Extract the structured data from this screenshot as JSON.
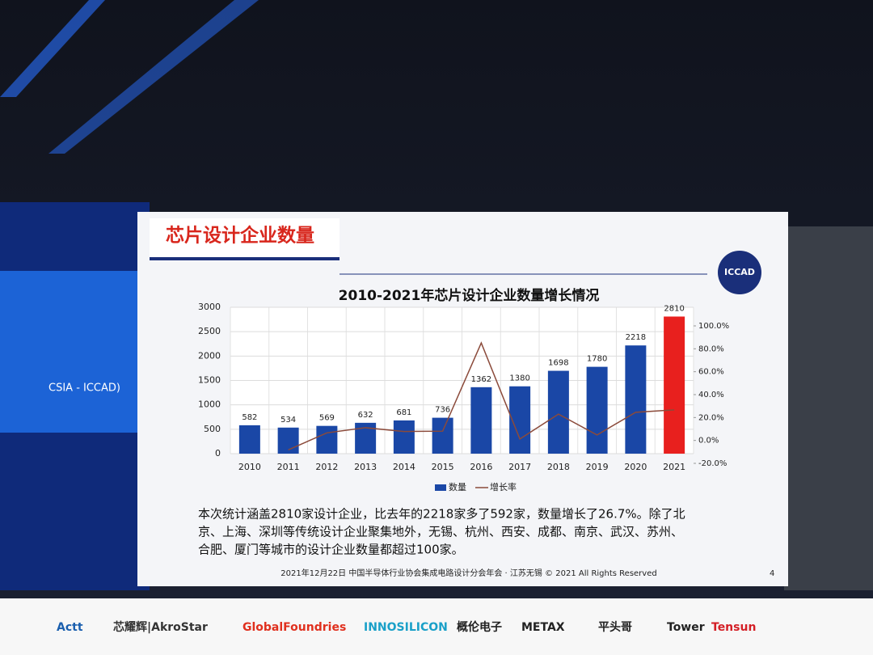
{
  "slide": {
    "title": "芯片设计企业数量",
    "logo": "ICCAD",
    "page_number": "4",
    "body_lines": [
      "本次统计涵盖2810家设计企业，比去年的2218家多了592家，数量增长了26.7%。除了北",
      "京、上海、深圳等传统设计企业聚集地外，无锡、杭州、西安、成都、南京、武汉、苏州、",
      "合肥、厦门等城市的设计企业数量都超过100家。"
    ],
    "footer": "2021年12月22日  中国半导体行业协会集成电路设计分会年会 · 江苏无锡 © 2021 All Rights Reserved"
  },
  "side_screen": {
    "text": "CSIA - ICCAD)"
  },
  "sponsors": [
    "Actt",
    "芯耀辉|AkroStar",
    "GlobalFoundries",
    "INNOSILICON",
    "概伦电子",
    "METAX",
    "平头哥",
    "Tower",
    "Tensun"
  ],
  "chart_data": {
    "type": "bar_line",
    "title": "2010-2021年芯片设计企业数量增长情况",
    "categories": [
      "2010",
      "2011",
      "2012",
      "2013",
      "2014",
      "2015",
      "2016",
      "2017",
      "2018",
      "2019",
      "2020",
      "2021"
    ],
    "series": [
      {
        "name": "数量",
        "color": "#1a47a6",
        "point_colors": [
          "#1a47a6",
          "#1a47a6",
          "#1a47a6",
          "#1a47a6",
          "#1a47a6",
          "#1a47a6",
          "#1a47a6",
          "#1a47a6",
          "#1a47a6",
          "#1a47a6",
          "#1a47a6",
          "#e8201e"
        ],
        "values": [
          582,
          534,
          569,
          632,
          681,
          736,
          1362,
          1380,
          1698,
          1780,
          2218,
          2810
        ]
      },
      {
        "name": "增长率",
        "color": "#8b4a3a",
        "axis": "y2",
        "values": [
          null,
          -8.2,
          6.6,
          11.1,
          7.8,
          8.1,
          85.1,
          1.3,
          23.0,
          4.8,
          24.6,
          26.7
        ]
      }
    ],
    "ylim": [
      0,
      3000
    ],
    "yticks": [
      0,
      500,
      1000,
      1500,
      2000,
      2500,
      3000
    ],
    "y2lim": [
      -20,
      100
    ],
    "y2ticks": [
      {
        "value": -20,
        "label": "-20.0%"
      },
      {
        "value": 0,
        "label": "0.0%"
      },
      {
        "value": 20,
        "label": "20.0%"
      },
      {
        "value": 40,
        "label": "40.0%"
      },
      {
        "value": 60,
        "label": "60.0%"
      },
      {
        "value": 80,
        "label": "80.0%"
      },
      {
        "value": 100,
        "label": "100.0%"
      }
    ],
    "grid": true,
    "legend": "bottom"
  }
}
